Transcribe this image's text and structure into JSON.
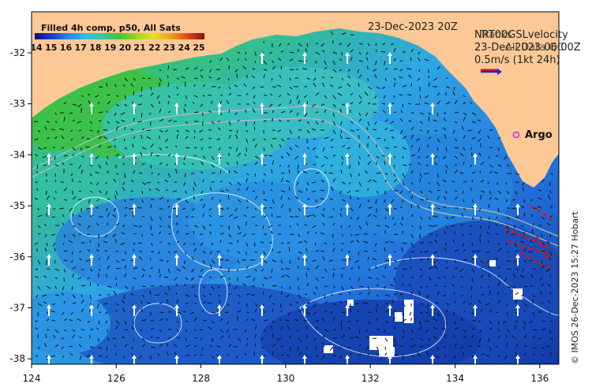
{
  "map": {
    "date_label": "23-Dec-2023 20Z",
    "colorbar": {
      "title": "Filled 4h comp, p50, All Sats",
      "ticks": [
        "14",
        "15",
        "16",
        "17",
        "18",
        "19",
        "20",
        "21",
        "22",
        "23",
        "24",
        "25"
      ]
    },
    "velocity_legend": {
      "line1": "NRT00GSLvelocity",
      "line2": "23-Dec-2023 06:00Z",
      "overlay_line1": "Tracks",
      "overlay_line2": "All Data QC",
      "scale_text": "0.5m/s (1kt 24h)"
    },
    "argo_label": "Argo",
    "credit": "© IMOS 26-Dec-2023 15:27 Hobart",
    "axes": {
      "x_ticks": [
        "124",
        "126",
        "128",
        "130",
        "132",
        "134",
        "136"
      ],
      "y_ticks": [
        "-32",
        "-33",
        "-34",
        "-35",
        "-36",
        "-37",
        "-38"
      ]
    },
    "colors": {
      "land": "#fcc896",
      "ocean_green": "#3fc23a",
      "ocean_cyan": "#33bde0",
      "ocean_blue": "#2273dc",
      "ocean_deep": "#1238a8",
      "arrow": "#ffffff",
      "vector": "#111111",
      "track": "#e01010",
      "argo": "#e020e0"
    }
  }
}
